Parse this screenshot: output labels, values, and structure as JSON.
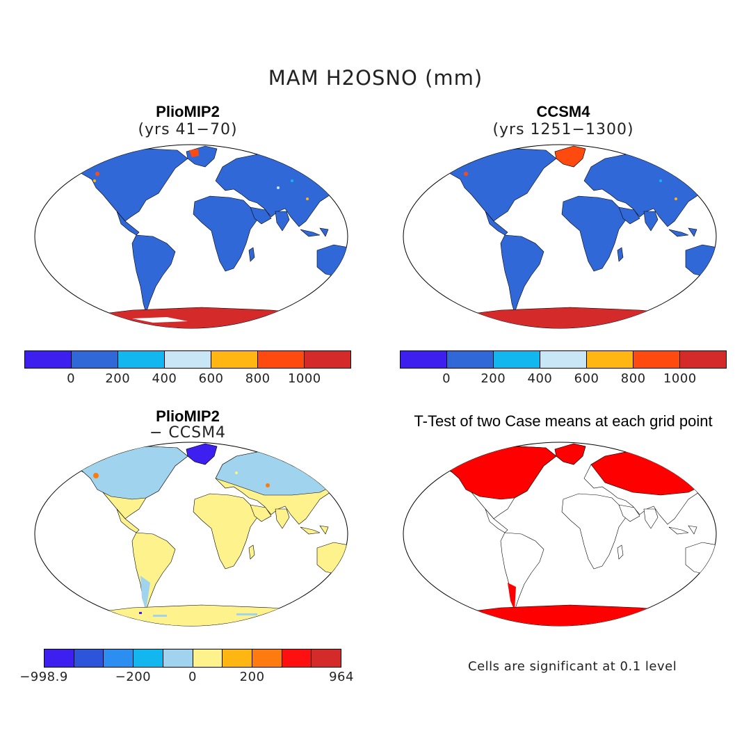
{
  "main_title": "MAM H2OSNO (mm)",
  "panels": [
    {
      "title": "PlioMIP2",
      "subtitle": "(yrs 41−70)"
    },
    {
      "title": "CCSM4",
      "subtitle": "(yrs 1251−1300)"
    },
    {
      "title": "PlioMIP2",
      "subtitle": "− CCSM4"
    },
    {
      "title": "T-Test of two Case means at each grid point",
      "subtitle": ""
    }
  ],
  "colorbars": {
    "absolute": {
      "colors": [
        "#3d1ff0",
        "#3168d8",
        "#13b7f0",
        "#c8e6f5",
        "#ffb612",
        "#ff4a0f",
        "#d42a2a"
      ],
      "labels": [
        "0",
        "200",
        "400",
        "600",
        "800",
        "1000"
      ],
      "label_values": [
        0,
        200,
        400,
        600,
        800,
        1000
      ]
    },
    "difference": {
      "colors": [
        "#3d1ff0",
        "#2c55d9",
        "#2b8ef0",
        "#13b7f0",
        "#a0d4ee",
        "#fdf28c",
        "#ffb612",
        "#ff7a0f",
        "#ff1010",
        "#d42a2a"
      ],
      "labels": [
        "−998.9",
        "−200",
        "0",
        "200",
        "964"
      ]
    }
  },
  "significance_note": "Cells are significant at 0.1 level"
}
